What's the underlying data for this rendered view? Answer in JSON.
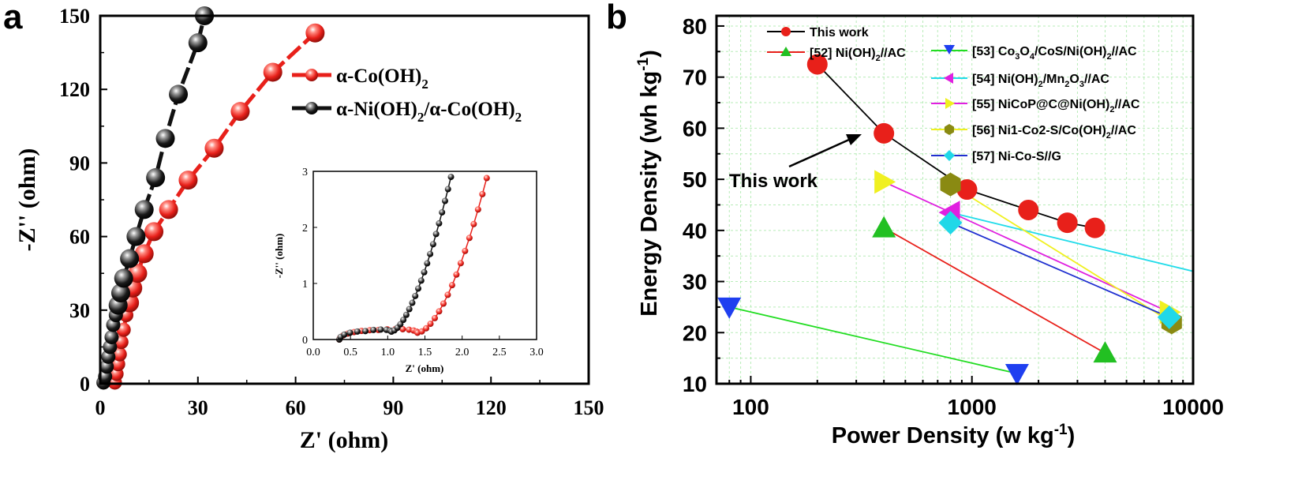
{
  "chart_data": [
    {
      "panel_label": "a",
      "type": "scatter",
      "xlabel": "Z' (ohm)",
      "ylabel": "-Z'' (ohm)",
      "xlim": [
        0,
        150
      ],
      "ylim": [
        0,
        150
      ],
      "xticks": [
        "0",
        "30",
        "60",
        "90",
        "120",
        "150"
      ],
      "yticks": [
        "0",
        "30",
        "60",
        "90",
        "120",
        "150"
      ],
      "legend_position": "top-right",
      "series": [
        {
          "name": "α-Co(OH)2",
          "color": "#e8201a",
          "points": [
            [
              4.5,
              0.5
            ],
            [
              5,
              4
            ],
            [
              5.5,
              8
            ],
            [
              6,
              12
            ],
            [
              6.5,
              17
            ],
            [
              7.2,
              22
            ],
            [
              8,
              28
            ],
            [
              9,
              33
            ],
            [
              10,
              39
            ],
            [
              11.5,
              45
            ],
            [
              13.5,
              53
            ],
            [
              16.5,
              62
            ],
            [
              21,
              71
            ],
            [
              27,
              83
            ],
            [
              35,
              96
            ],
            [
              43,
              111
            ],
            [
              53,
              127
            ],
            [
              66,
              143
            ]
          ]
        },
        {
          "name": "α-Ni(OH)2/α-Co(OH)2",
          "color": "#111111",
          "points": [
            [
              1,
              0.5
            ],
            [
              1.5,
              3
            ],
            [
              2,
              7
            ],
            [
              2.5,
              11
            ],
            [
              3,
              15
            ],
            [
              3.5,
              19
            ],
            [
              4,
              24
            ],
            [
              4.8,
              28
            ],
            [
              5.5,
              32
            ],
            [
              6.3,
              37
            ],
            [
              7.2,
              43
            ],
            [
              9,
              51
            ],
            [
              11,
              60
            ],
            [
              13.5,
              71
            ],
            [
              17,
              84
            ],
            [
              20,
              100
            ],
            [
              24,
              118
            ],
            [
              30,
              139
            ],
            [
              32,
              150
            ]
          ]
        }
      ],
      "inset": {
        "xlabel": "Z' (ohm)",
        "ylabel": "-Z'' (ohm)",
        "xlim": [
          0,
          3
        ],
        "ylim": [
          0,
          3
        ],
        "xticks": [
          "0.0",
          "0.5",
          "1.0",
          "1.5",
          "2.0",
          "2.5",
          "3.0"
        ],
        "yticks": [
          "0",
          "1",
          "2",
          "3"
        ]
      }
    },
    {
      "panel_label": "b",
      "type": "scatter",
      "xlabel": "Power Density (w kg-1)",
      "ylabel": "Energy Density (wh kg-1)",
      "xscale": "log",
      "xlim": [
        70,
        10000
      ],
      "ylim": [
        10,
        82
      ],
      "xticks": [
        "100",
        "1000",
        "10000"
      ],
      "yticks": [
        "10",
        "20",
        "30",
        "40",
        "50",
        "60",
        "70",
        "80"
      ],
      "grid": true,
      "annotation": "This work",
      "series": [
        {
          "name": "This work",
          "marker": "circle",
          "color": "#e8201a",
          "line_color": "#000000",
          "x": [
            200,
            400,
            950,
            1800,
            2700,
            3600
          ],
          "y": [
            72.5,
            59,
            48,
            44,
            41.5,
            40.5
          ]
        },
        {
          "name": "[52] Ni(OH)2//AC",
          "marker": "triangle-up",
          "color": "#22c022",
          "line_color": "#e8201a",
          "x": [
            400,
            4000
          ],
          "y": [
            40.5,
            16
          ]
        },
        {
          "name": "[53] Co3O4/CoS/Ni(OH)2//AC",
          "marker": "triangle-down",
          "color": "#1f3ff0",
          "line_color": "#22dd22",
          "x": [
            80,
            1600
          ],
          "y": [
            25,
            12
          ]
        },
        {
          "name": "[54] Ni(OH)2/Mn2O3//AC",
          "marker": "triangle-left",
          "color": "#e020e0",
          "line_color": "#22dcea",
          "x": [
            800,
            10000
          ],
          "y": [
            43.5,
            32
          ]
        },
        {
          "name": "[55] NiCoP@C@Ni(OH)2//AC",
          "marker": "triangle-right",
          "color": "#f0f020",
          "line_color": "#e020e0",
          "x": [
            400,
            7800
          ],
          "y": [
            49.5,
            24
          ]
        },
        {
          "name": "[56] Ni1-Co2-S/Co(OH)2//AC",
          "marker": "hexagon",
          "color": "#8a8a12",
          "line_color": "#f0f020",
          "x": [
            800,
            8000
          ],
          "y": [
            49,
            22
          ]
        },
        {
          "name": "[57] Ni-Co-S//G",
          "marker": "diamond",
          "color": "#20d8e8",
          "line_color": "#2030d0",
          "x": [
            800,
            7800
          ],
          "y": [
            41.5,
            23
          ]
        }
      ]
    }
  ]
}
